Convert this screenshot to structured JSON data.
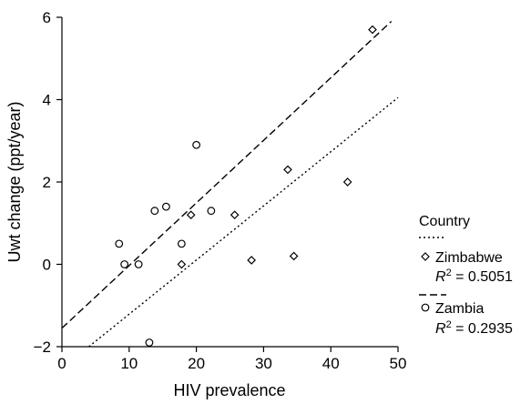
{
  "chart_data": {
    "type": "scatter",
    "title": "",
    "xlabel": "HIV prevalence",
    "ylabel": "Uwt change (ppt/year)",
    "xlim": [
      0,
      50
    ],
    "ylim": [
      -2,
      6
    ],
    "xticks": [
      "0",
      "10",
      "20",
      "30",
      "40",
      "50"
    ],
    "yticks": [
      "−2",
      "0",
      "2",
      "4",
      "6"
    ],
    "xtick_values": [
      0,
      10,
      20,
      30,
      40,
      50
    ],
    "ytick_values": [
      -2,
      0,
      2,
      4,
      6
    ],
    "grid": false,
    "legend": {
      "title": "Country",
      "placement": "right"
    },
    "series": [
      {
        "name": "Zimbabwe",
        "marker": "diamond",
        "line": "dotted",
        "r2_label": "R",
        "r2_value": " = 0.5051",
        "points": [
          {
            "x": 17.8,
            "y": 0.0
          },
          {
            "x": 19.2,
            "y": 1.2
          },
          {
            "x": 25.7,
            "y": 1.2
          },
          {
            "x": 28.2,
            "y": 0.1
          },
          {
            "x": 33.6,
            "y": 2.3
          },
          {
            "x": 34.5,
            "y": 0.2
          },
          {
            "x": 42.5,
            "y": 2.0
          },
          {
            "x": 46.2,
            "y": 5.7
          }
        ],
        "fit": {
          "x0": 4,
          "y0": -2.0,
          "x1": 50,
          "y1": 4.05
        }
      },
      {
        "name": "Zambia",
        "marker": "circle",
        "line": "dashed",
        "r2_label": "R",
        "r2_value": " = 0.2935",
        "points": [
          {
            "x": 8.5,
            "y": 0.5
          },
          {
            "x": 9.3,
            "y": 0.0
          },
          {
            "x": 11.4,
            "y": 0.0
          },
          {
            "x": 13.0,
            "y": -1.9
          },
          {
            "x": 13.8,
            "y": 1.3
          },
          {
            "x": 15.5,
            "y": 1.4
          },
          {
            "x": 17.8,
            "y": 0.5
          },
          {
            "x": 20.0,
            "y": 2.9
          },
          {
            "x": 22.2,
            "y": 1.3
          }
        ],
        "fit": {
          "x0": 0,
          "y0": -1.55,
          "x1": 49,
          "y1": 5.9
        }
      }
    ]
  }
}
